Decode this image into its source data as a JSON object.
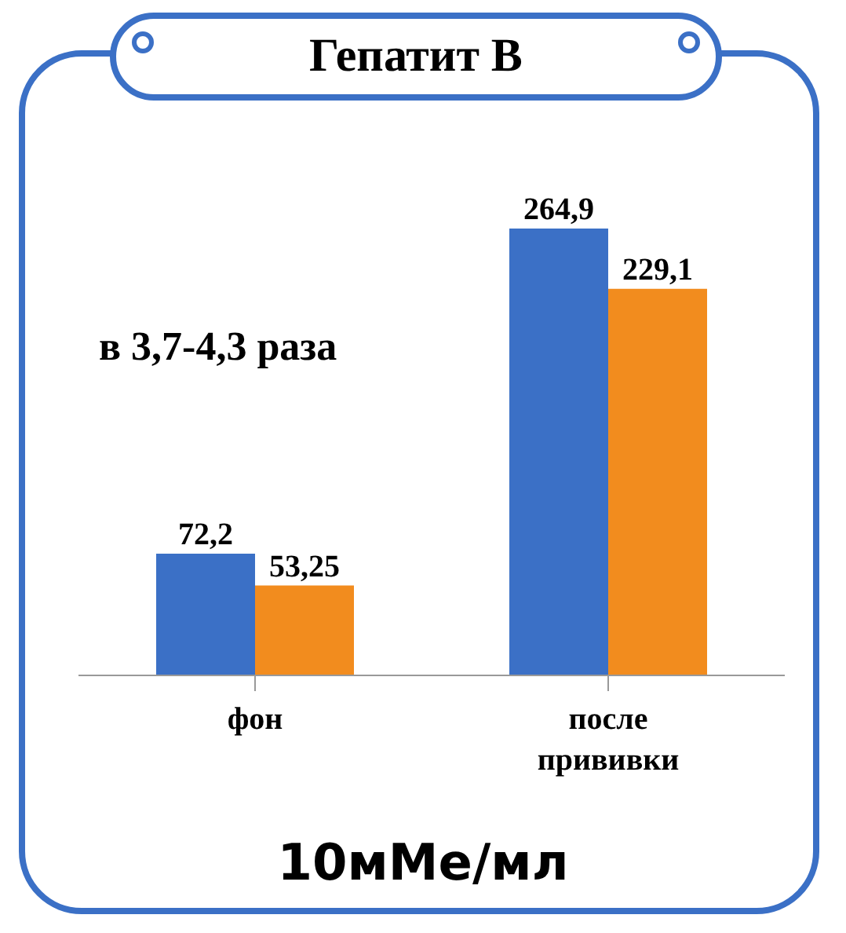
{
  "chart_data": {
    "type": "bar",
    "title": "Гепатит В",
    "categories": [
      "фон",
      "после прививки"
    ],
    "series": [
      {
        "color": "#3b70c6",
        "values": [
          72.2,
          264.9
        ],
        "value_labels": [
          "72,2",
          "264,9"
        ]
      },
      {
        "color": "#f28c1e",
        "values": [
          53.25,
          229.1
        ],
        "value_labels": [
          "53,25",
          "229,1"
        ]
      }
    ],
    "annotations": [
      "в 3,7-4,3 раза",
      "10мМе/мл"
    ]
  }
}
